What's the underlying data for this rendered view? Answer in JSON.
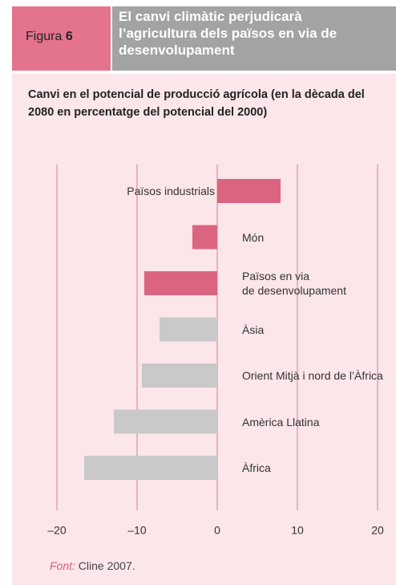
{
  "header": {
    "figure_label": "Figura",
    "figure_number": "6",
    "title": "El canvi climàtic perjudicarà l’agricultura dels països en via de desenvolupament"
  },
  "chart_data": {
    "type": "barh",
    "title": "Canvi en el potencial de producció agrícola (en la dècada del 2080 en percentatge del potencial del 2000)",
    "categories": [
      "Països industrials",
      "Món",
      "Països en via\nde desenvolupament",
      "Àsia",
      "Orient Mitjà i nord de l’Àfrica",
      "Amèrica Llatina",
      "Àfrica"
    ],
    "values": [
      7.9,
      -3.1,
      -9.1,
      -7.2,
      -9.4,
      -12.9,
      -16.6
    ],
    "colors": [
      "#db6580",
      "#db6580",
      "#db6580",
      "#c9c9c9",
      "#c9c9c9",
      "#c9c9c9",
      "#c9c9c9"
    ],
    "xlim": [
      -20,
      20
    ],
    "xticks": [
      {
        "value": -20,
        "label": "–20"
      },
      {
        "value": -10,
        "label": "–10"
      },
      0,
      10,
      20
    ],
    "grid": true
  },
  "source": {
    "label": "Font:",
    "text": "Cline 2007."
  }
}
